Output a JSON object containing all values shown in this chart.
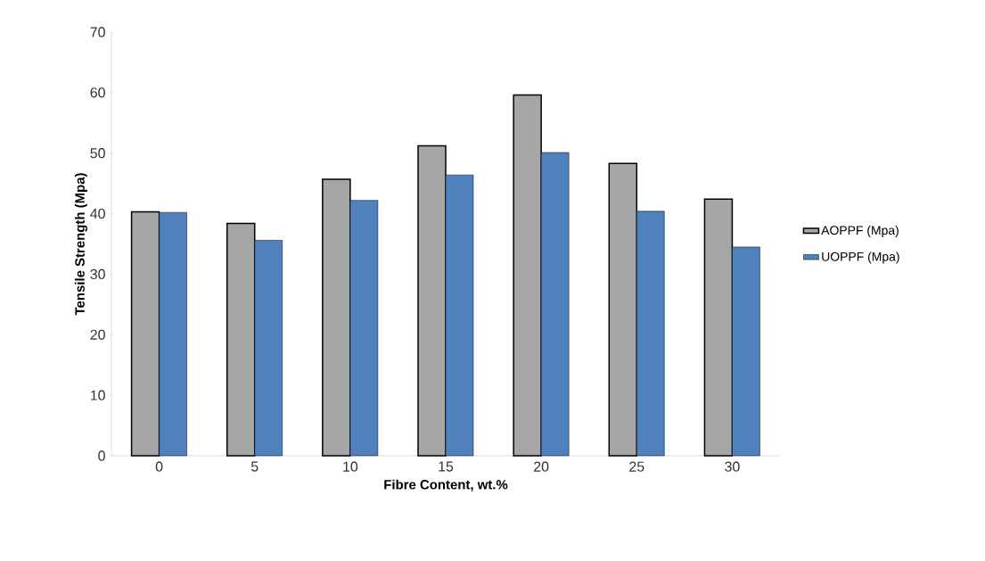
{
  "chart_data": {
    "type": "bar",
    "xlabel": "Fibre Content, wt.%",
    "ylabel": "Tensile Strength (Mpa)",
    "categories": [
      "0",
      "5",
      "10",
      "15",
      "20",
      "25",
      "30"
    ],
    "series": [
      {
        "name": "AOPPF (Mpa)",
        "color": "#a6a6a6",
        "values": [
          40.3,
          38.4,
          45.7,
          51.2,
          59.6,
          48.3,
          42.4
        ]
      },
      {
        "name": "UOPPF (Mpa)",
        "color": "#4f81bd",
        "values": [
          40.2,
          35.6,
          42.2,
          46.4,
          50.1,
          40.4,
          34.5
        ]
      }
    ],
    "ylim": [
      0,
      70
    ],
    "yticks": [
      0,
      10,
      20,
      30,
      40,
      50,
      60,
      70
    ],
    "grid": false,
    "legend": "right"
  }
}
